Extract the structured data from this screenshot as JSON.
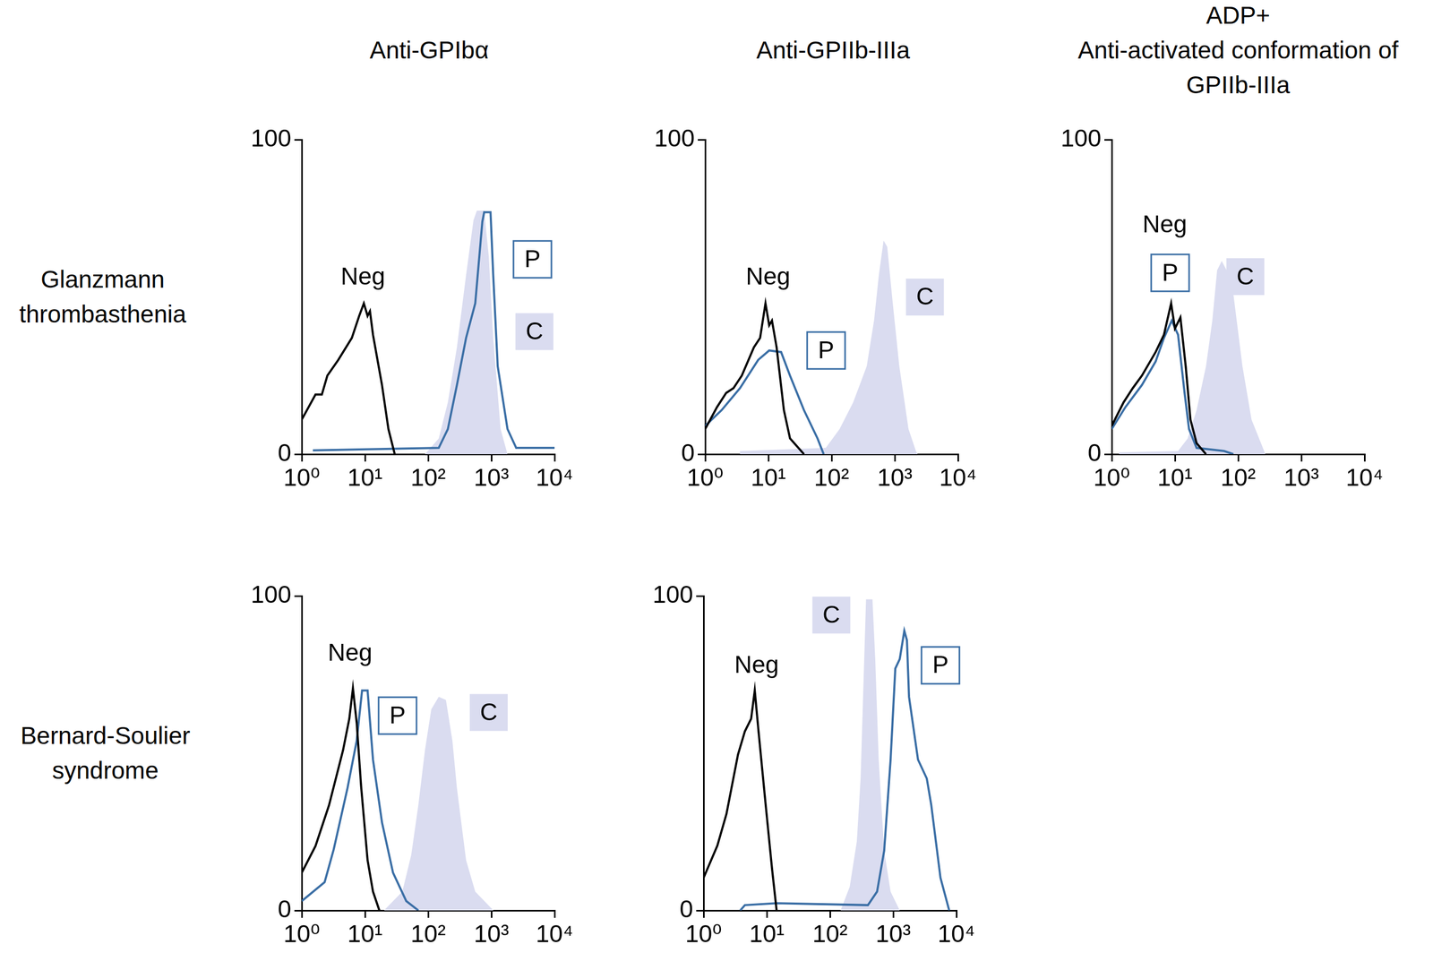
{
  "figure": {
    "column_titles": [
      [
        "Anti-GPIbα"
      ],
      [
        "Anti-GPIIb-IIIa"
      ],
      [
        "ADP+",
        "Anti-activated conformation of",
        "GPIIb-IIIa"
      ]
    ],
    "row_labels": [
      [
        "Glanzmann",
        "thrombasthenia"
      ],
      [
        "Bernard-Soulier",
        "syndrome"
      ]
    ]
  },
  "chart_data": [
    {
      "type": "line",
      "log": "x",
      "grid": false,
      "xlim": [
        1,
        10000
      ],
      "xticks": [
        {
          "value": 1,
          "label": "10⁰"
        },
        {
          "value": 10,
          "label": "10¹"
        },
        {
          "value": 100,
          "label": "10²"
        },
        {
          "value": 1000,
          "label": "10³"
        },
        {
          "value": 10000,
          "label": "10⁴"
        }
      ],
      "ylim": [
        0,
        100
      ],
      "yticks": [
        0,
        100
      ],
      "series": [
        {
          "name": "C",
          "type": "area",
          "color": "#dadcf0",
          "label_x": 4800,
          "label_y": 39,
          "x": [
            89,
            147,
            205,
            285,
            398,
            522,
            590,
            770,
            910,
            1070,
            1400,
            1800
          ],
          "values": [
            0,
            5,
            16.5,
            34,
            57,
            74.5,
            77.5,
            77.5,
            63,
            37,
            8,
            0
          ]
        },
        {
          "name": "Neg",
          "type": "line",
          "color": "#000000",
          "label_x": 9.3,
          "label_y": 56.5,
          "x": [
            1,
            1.65,
            2.08,
            2.54,
            3.78,
            6.2,
            8.1,
            9.6,
            11,
            12,
            13.4,
            18.6,
            23.5,
            29.6
          ],
          "values": [
            11,
            19,
            19,
            25,
            30,
            37,
            44,
            48,
            44,
            45.5,
            38,
            22,
            8,
            0
          ]
        },
        {
          "name": "P",
          "type": "line",
          "color": "#3a6ea5",
          "label_x": 4470,
          "label_y": 62,
          "x": [
            1.5,
            147,
            205,
            285,
            398,
            556,
            720,
            770,
            970,
            1070,
            1260,
            1800,
            2470,
            10000
          ],
          "values": [
            1.2,
            2,
            8,
            22,
            37,
            48,
            74,
            77,
            77,
            57,
            28,
            8,
            2,
            2
          ]
        }
      ]
    },
    {
      "type": "line",
      "log": "x",
      "grid": false,
      "xlim": [
        1,
        10000
      ],
      "xticks": [
        {
          "value": 1,
          "label": "10⁰"
        },
        {
          "value": 10,
          "label": "10¹"
        },
        {
          "value": 100,
          "label": "10²"
        },
        {
          "value": 1000,
          "label": "10³"
        },
        {
          "value": 10000,
          "label": "10⁴"
        }
      ],
      "ylim": [
        0,
        100
      ],
      "yticks": [
        0,
        100
      ],
      "series": [
        {
          "name": "C",
          "type": "area",
          "color": "#dadcf0",
          "label_x": 3000,
          "label_y": 50,
          "x": [
            3.55,
            81,
            134,
            220,
            360,
            470,
            560,
            665,
            760,
            930,
            1180,
            1650,
            2160,
            2300
          ],
          "values": [
            1,
            2,
            8,
            16.5,
            28,
            42.5,
            57,
            68,
            66,
            48,
            28,
            8,
            1,
            0
          ]
        },
        {
          "name": "Neg",
          "type": "line",
          "color": "#000000",
          "label_x": 9.9,
          "label_y": 56.5,
          "x": [
            1,
            1.54,
            2.15,
            2.8,
            3.8,
            5.9,
            7.4,
            9.0,
            10.3,
            11.4,
            13.5,
            17.6,
            22,
            36.6
          ],
          "values": [
            8,
            15,
            19.5,
            21,
            25,
            34,
            37,
            48,
            41,
            42.5,
            34,
            14,
            5,
            0
          ]
        },
        {
          "name": "P",
          "type": "line",
          "color": "#3a6ea5",
          "label_x": 82,
          "label_y": 33,
          "x": [
            1,
            1.82,
            3.55,
            6.9,
            10.3,
            15.9,
            22,
            36.6,
            60,
            75
          ],
          "values": [
            9,
            14,
            21,
            30,
            33,
            32.5,
            25,
            14,
            5,
            0
          ]
        }
      ]
    },
    {
      "type": "line",
      "log": "x",
      "grid": false,
      "xlim": [
        1,
        10000
      ],
      "xticks": [
        {
          "value": 1,
          "label": "10⁰"
        },
        {
          "value": 10,
          "label": "10¹"
        },
        {
          "value": 100,
          "label": "10²"
        },
        {
          "value": 1000,
          "label": "10³"
        },
        {
          "value": 10000,
          "label": "10⁴"
        }
      ],
      "ylim": [
        0,
        100
      ],
      "yticks": [
        0,
        100
      ],
      "series": [
        {
          "name": "C",
          "type": "area",
          "color": "#dadcf0",
          "label_x": 130,
          "label_y": 56.5,
          "x": [
            1.3,
            11.2,
            15.9,
            22,
            31,
            39,
            46.5,
            55,
            72,
            84,
            117,
            163,
            270
          ],
          "values": [
            0.6,
            1,
            5,
            14,
            28,
            42.5,
            58.5,
            61.5,
            57,
            51,
            28,
            11,
            0
          ]
        },
        {
          "name": "Neg",
          "type": "line",
          "color": "#000000",
          "label_x": 6.9,
          "label_y": 73,
          "x": [
            1,
            1.54,
            2.15,
            3.0,
            4.95,
            6.7,
            8.7,
            10,
            12.2,
            14.8,
            17.6,
            22,
            31
          ],
          "values": [
            9,
            16.5,
            21,
            25,
            32.5,
            38,
            48,
            40,
            43.5,
            28,
            11,
            3.5,
            0
          ]
        },
        {
          "name": "P",
          "type": "line",
          "color": "#3a6ea5",
          "label_x": 8.4,
          "label_y": 57.7,
          "x": [
            1,
            1.65,
            3.0,
            4.95,
            6.7,
            8.9,
            11.2,
            14.2,
            16.7,
            22,
            60,
            84
          ],
          "values": [
            8,
            15,
            22,
            29.5,
            37,
            42.5,
            38,
            19.5,
            8,
            2,
            1,
            0
          ]
        }
      ]
    },
    {
      "type": "line",
      "log": "x",
      "grid": false,
      "xlim": [
        1,
        10000
      ],
      "xticks": [
        {
          "value": 1,
          "label": "10⁰"
        },
        {
          "value": 10,
          "label": "10¹"
        },
        {
          "value": 100,
          "label": "10²"
        },
        {
          "value": 1000,
          "label": "10³"
        },
        {
          "value": 10000,
          "label": "10⁴"
        }
      ],
      "ylim": [
        0,
        100
      ],
      "yticks": [
        0,
        100
      ],
      "series": [
        {
          "name": "C",
          "type": "area",
          "color": "#dadcf0",
          "label_x": 910,
          "label_y": 63,
          "x": [
            20,
            39,
            54,
            70,
            89,
            112,
            147,
            191,
            242,
            285,
            398,
            556,
            1080
          ],
          "values": [
            0,
            6,
            17.7,
            33.6,
            51,
            64,
            68,
            67,
            54,
            39,
            16,
            6,
            0
          ]
        },
        {
          "name": "Neg",
          "type": "line",
          "color": "#000000",
          "label_x": 5.8,
          "label_y": 82,
          "x": [
            1,
            1.65,
            2.7,
            4.5,
            5.65,
            6.45,
            7.4,
            8.7,
            11,
            13.4,
            16.9
          ],
          "values": [
            12,
            20.5,
            33.5,
            51,
            61,
            70.7,
            59.7,
            39.4,
            16,
            6,
            0
          ]
        },
        {
          "name": "P",
          "type": "line",
          "color": "#3a6ea5",
          "label_x": 32.8,
          "label_y": 62,
          "x": [
            1,
            2.3,
            3.2,
            5.3,
            7.4,
            9,
            11,
            13.4,
            18.6,
            27.8,
            45,
            70
          ],
          "values": [
            3,
            9,
            19.4,
            39,
            54,
            70,
            70,
            48,
            28,
            12,
            3,
            0
          ]
        }
      ]
    },
    {
      "type": "line",
      "log": "x",
      "grid": false,
      "xlim": [
        1,
        10000
      ],
      "xticks": [
        {
          "value": 1,
          "label": "10⁰"
        },
        {
          "value": 10,
          "label": "10¹"
        },
        {
          "value": 100,
          "label": "10²"
        },
        {
          "value": 1000,
          "label": "10³"
        },
        {
          "value": 10000,
          "label": "10⁴"
        }
      ],
      "ylim": [
        0,
        100
      ],
      "yticks": [
        0,
        100
      ],
      "series": [
        {
          "name": "C",
          "type": "area",
          "color": "#dadcf0",
          "label_x": 105,
          "label_y": 94,
          "x": [
            147,
            205,
            266,
            305,
            348,
            372,
            470,
            520,
            590,
            720,
            910,
            1270
          ],
          "values": [
            0,
            7.5,
            22,
            42,
            80,
            99,
            99,
            80,
            48,
            19,
            6,
            0
          ]
        },
        {
          "name": "Neg",
          "type": "line",
          "color": "#000000",
          "label_x": 6.9,
          "label_y": 78,
          "x": [
            1,
            1.65,
            2.3,
            3.5,
            4.5,
            5.65,
            6.45,
            7.4,
            9.6,
            12.1,
            14.3
          ],
          "values": [
            10.4,
            20.6,
            30.7,
            49.6,
            57,
            61,
            70,
            57,
            33.6,
            13.3,
            0
          ]
        },
        {
          "name": "P",
          "type": "line",
          "color": "#3a6ea5",
          "label_x": 5600,
          "label_y": 78,
          "x": [
            3.8,
            4.5,
            14.3,
            398,
            556,
            720,
            910,
            1080,
            1270,
            1500,
            1650,
            1780,
            2470,
            3400,
            4000,
            5600,
            7700
          ],
          "values": [
            0,
            1.7,
            2.3,
            1.7,
            6,
            19,
            48,
            77,
            80,
            89,
            86,
            68,
            48,
            42,
            33.6,
            10.4,
            0
          ]
        }
      ]
    }
  ]
}
